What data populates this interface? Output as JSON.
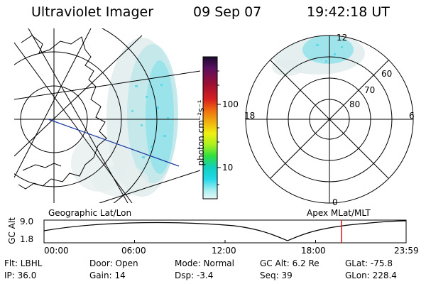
{
  "header": {
    "title": "Ultraviolet Imager",
    "date": "09 Sep 07",
    "time": "19:42:18 UT"
  },
  "left_panel": {
    "label": "Geographic Lat/Lon"
  },
  "right_panel": {
    "label": "Apex MLat/MLT",
    "mlt_labels": {
      "top": "12",
      "left": "18",
      "right": "6",
      "bottom": "0"
    },
    "mlat_labels": [
      "60",
      "70",
      "80"
    ]
  },
  "colorbar": {
    "unit_label": "photon cm⁻²s⁻¹",
    "ticks": [
      "100",
      "10"
    ],
    "colors": [
      "#1a0a2e",
      "#5a1060",
      "#a01030",
      "#d82020",
      "#f07010",
      "#f0b010",
      "#f0f010",
      "#a8f020",
      "#30e040",
      "#10d0c0",
      "#20d8e8",
      "#a8eef0",
      "#e8f8f8"
    ]
  },
  "altitude_plot": {
    "ylabel": "GC Alt",
    "y_ticks": [
      "9.0",
      "1.8"
    ],
    "x_ticks": [
      "00:00",
      "06:00",
      "12:00",
      "18:00",
      "23:59"
    ],
    "marker_color": "#e01010"
  },
  "info": {
    "flt": "Flt: LBHL",
    "ip": "IP: 36.0",
    "door": "Door: Open",
    "gain": "Gain: 14",
    "mode": "Mode: Normal",
    "dsp": "Dsp:    -3.4",
    "gcalt": "GC Alt: 6.2 Re",
    "seq": "Seq: 39",
    "glat": "GLat: -75.8",
    "glon": "GLon: 228.4"
  }
}
